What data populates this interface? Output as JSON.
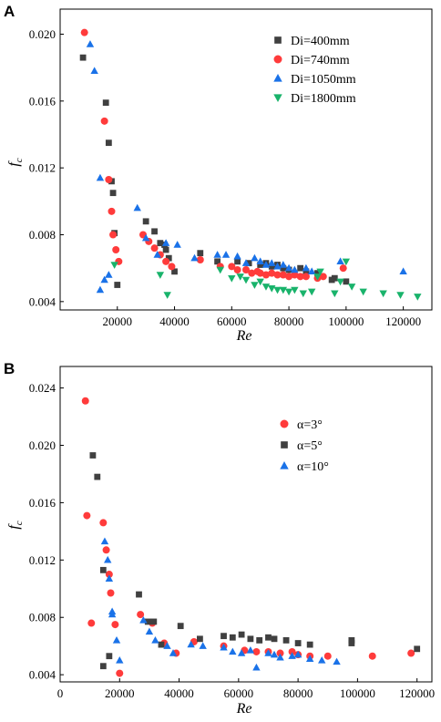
{
  "chart_data": [
    {
      "panel_label": "A",
      "type": "scatter",
      "xlabel": "Re",
      "ylabel": "f",
      "ylabel_sub": "c",
      "xlim": [
        0,
        130000
      ],
      "ylim": [
        0.0035,
        0.0215
      ],
      "xticks": [
        20000,
        40000,
        60000,
        80000,
        100000,
        120000
      ],
      "yticks": [
        0.004,
        0.008,
        0.012,
        0.016,
        0.02
      ],
      "xtick_labels": [
        "20000",
        "40000",
        "60000",
        "80000",
        "100000",
        "120000"
      ],
      "ytick_labels": [
        "0.004",
        "0.008",
        "0.012",
        "0.016",
        "0.020"
      ],
      "legend_position": "top-right",
      "series": [
        {
          "name": "Di=400mm",
          "marker": "square",
          "color": "#404040",
          "points": [
            [
              8000,
              0.0186
            ],
            [
              16000,
              0.0159
            ],
            [
              17000,
              0.0135
            ],
            [
              18000,
              0.0112
            ],
            [
              18500,
              0.0105
            ],
            [
              19000,
              0.0081
            ],
            [
              20000,
              0.005
            ],
            [
              30000,
              0.0088
            ],
            [
              33000,
              0.0082
            ],
            [
              35000,
              0.0075
            ],
            [
              36500,
              0.0074
            ],
            [
              37000,
              0.0071
            ],
            [
              38000,
              0.0066
            ],
            [
              40000,
              0.0058
            ],
            [
              49000,
              0.0069
            ],
            [
              55000,
              0.0064
            ],
            [
              62000,
              0.0064
            ],
            [
              66000,
              0.0063
            ],
            [
              70000,
              0.0062
            ],
            [
              72000,
              0.0063
            ],
            [
              74000,
              0.0061
            ],
            [
              76000,
              0.0062
            ],
            [
              78000,
              0.006
            ],
            [
              80000,
              0.0059
            ],
            [
              84000,
              0.006
            ],
            [
              86000,
              0.0058
            ],
            [
              90000,
              0.0057
            ],
            [
              95000,
              0.0053
            ],
            [
              96000,
              0.0054
            ],
            [
              100000,
              0.0052
            ]
          ]
        },
        {
          "name": "Di=740mm",
          "marker": "circle",
          "color": "#ff3b3b",
          "points": [
            [
              8500,
              0.0201
            ],
            [
              15500,
              0.0148
            ],
            [
              17000,
              0.0113
            ],
            [
              18000,
              0.0094
            ],
            [
              18500,
              0.008
            ],
            [
              19500,
              0.0071
            ],
            [
              20500,
              0.0064
            ],
            [
              29000,
              0.008
            ],
            [
              31000,
              0.0076
            ],
            [
              33000,
              0.0072
            ],
            [
              35000,
              0.0068
            ],
            [
              37000,
              0.0064
            ],
            [
              39000,
              0.0061
            ],
            [
              49000,
              0.0065
            ],
            [
              56000,
              0.0061
            ],
            [
              60000,
              0.0061
            ],
            [
              62000,
              0.0059
            ],
            [
              65000,
              0.0059
            ],
            [
              67000,
              0.0057
            ],
            [
              69000,
              0.0058
            ],
            [
              70000,
              0.0057
            ],
            [
              72000,
              0.0056
            ],
            [
              74000,
              0.0057
            ],
            [
              76000,
              0.0056
            ],
            [
              78000,
              0.0056
            ],
            [
              80000,
              0.0055
            ],
            [
              82000,
              0.0056
            ],
            [
              84000,
              0.0055
            ],
            [
              86000,
              0.0055
            ],
            [
              90000,
              0.0054
            ],
            [
              92000,
              0.0055
            ],
            [
              99000,
              0.006
            ]
          ]
        },
        {
          "name": "Di=1050mm",
          "marker": "triangle-up",
          "color": "#1a72e8",
          "points": [
            [
              10500,
              0.0194
            ],
            [
              12000,
              0.0178
            ],
            [
              14000,
              0.0114
            ],
            [
              14000,
              0.0047
            ],
            [
              15500,
              0.0053
            ],
            [
              17000,
              0.0056
            ],
            [
              27000,
              0.0096
            ],
            [
              30000,
              0.0078
            ],
            [
              34000,
              0.0068
            ],
            [
              37000,
              0.0075
            ],
            [
              41000,
              0.0074
            ],
            [
              47000,
              0.0066
            ],
            [
              55000,
              0.0068
            ],
            [
              58000,
              0.0068
            ],
            [
              62000,
              0.0067
            ],
            [
              65000,
              0.0063
            ],
            [
              68000,
              0.0066
            ],
            [
              70000,
              0.0064
            ],
            [
              72000,
              0.0062
            ],
            [
              74000,
              0.0063
            ],
            [
              76000,
              0.0061
            ],
            [
              78000,
              0.0062
            ],
            [
              80000,
              0.006
            ],
            [
              82000,
              0.0059
            ],
            [
              86000,
              0.006
            ],
            [
              88000,
              0.0058
            ],
            [
              98000,
              0.0064
            ],
            [
              120000,
              0.0058
            ]
          ]
        },
        {
          "name": "Di=1800mm",
          "marker": "triangle-down",
          "color": "#19b36b",
          "points": [
            [
              19000,
              0.0062
            ],
            [
              35000,
              0.0056
            ],
            [
              37500,
              0.0044
            ],
            [
              56000,
              0.0059
            ],
            [
              60000,
              0.0054
            ],
            [
              63000,
              0.0055
            ],
            [
              65000,
              0.0053
            ],
            [
              68000,
              0.005
            ],
            [
              70000,
              0.0052
            ],
            [
              72000,
              0.0049
            ],
            [
              74000,
              0.0048
            ],
            [
              76000,
              0.0047
            ],
            [
              78000,
              0.0047
            ],
            [
              80000,
              0.0046
            ],
            [
              82000,
              0.0047
            ],
            [
              85000,
              0.0045
            ],
            [
              88000,
              0.0046
            ],
            [
              90000,
              0.0055
            ],
            [
              91000,
              0.0058
            ],
            [
              96000,
              0.0045
            ],
            [
              98000,
              0.0052
            ],
            [
              100000,
              0.0064
            ],
            [
              102000,
              0.0049
            ],
            [
              106000,
              0.0046
            ],
            [
              113000,
              0.0045
            ],
            [
              119000,
              0.0044
            ],
            [
              125000,
              0.0043
            ]
          ]
        }
      ]
    },
    {
      "panel_label": "B",
      "type": "scatter",
      "xlabel": "Re",
      "ylabel": "f",
      "ylabel_sub": "c",
      "xlim": [
        0,
        125000
      ],
      "ylim": [
        0.0035,
        0.0255
      ],
      "xticks": [
        0,
        20000,
        40000,
        60000,
        80000,
        100000,
        120000
      ],
      "yticks": [
        0.004,
        0.008,
        0.012,
        0.016,
        0.02,
        0.024
      ],
      "xtick_labels": [
        "0",
        "20000",
        "40000",
        "60000",
        "80000",
        "100000",
        "120000"
      ],
      "ytick_labels": [
        "0.004",
        "0.008",
        "0.012",
        "0.016",
        "0.020",
        "0.024"
      ],
      "legend_position": "top-right",
      "series": [
        {
          "name": "α=3°",
          "marker": "circle",
          "color": "#ff3b3b",
          "points": [
            [
              8500,
              0.0231
            ],
            [
              9000,
              0.0151
            ],
            [
              10500,
              0.0076
            ],
            [
              14500,
              0.0146
            ],
            [
              15500,
              0.0127
            ],
            [
              16500,
              0.011
            ],
            [
              17000,
              0.0097
            ],
            [
              18500,
              0.0075
            ],
            [
              20000,
              0.0041
            ],
            [
              27000,
              0.0082
            ],
            [
              31000,
              0.0076
            ],
            [
              35000,
              0.0062
            ],
            [
              39000,
              0.0055
            ],
            [
              45000,
              0.0063
            ],
            [
              55000,
              0.006
            ],
            [
              62000,
              0.0057
            ],
            [
              66000,
              0.0056
            ],
            [
              70000,
              0.0056
            ],
            [
              74000,
              0.0055
            ],
            [
              78000,
              0.0056
            ],
            [
              80000,
              0.0054
            ],
            [
              84000,
              0.0053
            ],
            [
              90000,
              0.0053
            ],
            [
              105000,
              0.0053
            ],
            [
              118000,
              0.0055
            ]
          ]
        },
        {
          "name": "α=5°",
          "marker": "square",
          "color": "#404040",
          "points": [
            [
              11000,
              0.0193
            ],
            [
              12500,
              0.0178
            ],
            [
              14500,
              0.0113
            ],
            [
              14500,
              0.0046
            ],
            [
              16500,
              0.0053
            ],
            [
              26500,
              0.0096
            ],
            [
              29500,
              0.0077
            ],
            [
              31500,
              0.0077
            ],
            [
              34000,
              0.0061
            ],
            [
              40500,
              0.0074
            ],
            [
              47000,
              0.0065
            ],
            [
              55000,
              0.0067
            ],
            [
              58000,
              0.0066
            ],
            [
              61000,
              0.0068
            ],
            [
              64000,
              0.0065
            ],
            [
              67000,
              0.0064
            ],
            [
              70000,
              0.0066
            ],
            [
              72000,
              0.0065
            ],
            [
              76000,
              0.0064
            ],
            [
              80000,
              0.0062
            ],
            [
              84000,
              0.0061
            ],
            [
              98000,
              0.0064
            ],
            [
              98000,
              0.0062
            ],
            [
              120000,
              0.0058
            ]
          ]
        },
        {
          "name": "α=10°",
          "marker": "triangle-up",
          "color": "#1a72e8",
          "points": [
            [
              15000,
              0.0133
            ],
            [
              16000,
              0.012
            ],
            [
              16500,
              0.0107
            ],
            [
              17500,
              0.0084
            ],
            [
              17500,
              0.0082
            ],
            [
              19000,
              0.0064
            ],
            [
              20000,
              0.005
            ],
            [
              28000,
              0.0078
            ],
            [
              30000,
              0.007
            ],
            [
              32000,
              0.0064
            ],
            [
              36000,
              0.006
            ],
            [
              38000,
              0.0055
            ],
            [
              44000,
              0.0061
            ],
            [
              48000,
              0.006
            ],
            [
              55000,
              0.0059
            ],
            [
              58000,
              0.0056
            ],
            [
              61000,
              0.0055
            ],
            [
              64000,
              0.0057
            ],
            [
              66000,
              0.0045
            ],
            [
              70000,
              0.0055
            ],
            [
              72000,
              0.0054
            ],
            [
              74000,
              0.0052
            ],
            [
              78000,
              0.0053
            ],
            [
              80000,
              0.0054
            ],
            [
              84000,
              0.0051
            ],
            [
              88000,
              0.005
            ],
            [
              93000,
              0.0049
            ]
          ]
        }
      ]
    }
  ]
}
